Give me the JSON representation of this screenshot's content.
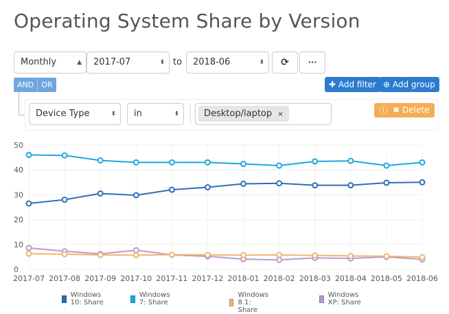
{
  "title": "Operating System Share by Version",
  "controls": {
    "interval": "Monthly",
    "from": "2017-07",
    "to_label": "to",
    "to": "2018-06",
    "refresh_icon": "refresh-icon",
    "more_icon": "ellipsis-icon",
    "more_label": "···"
  },
  "filters": {
    "and_label": "AND",
    "or_label": "OR",
    "add_filter": "Add filter",
    "add_group": "Add group",
    "field": "Device Type",
    "operator": "in",
    "value_tag": "Desktop/laptop",
    "remove_tag": "×",
    "delete_label": "Delete"
  },
  "chart_data": {
    "type": "line",
    "title": "",
    "xlabel": "",
    "ylabel": "",
    "ylim": [
      0,
      50
    ],
    "yticks": [
      "0",
      "10",
      "20",
      "30",
      "40",
      "50"
    ],
    "grid": true,
    "legend": "bottom",
    "categories": [
      "2017-07",
      "2017-08",
      "2017-09",
      "2017-10",
      "2017-11",
      "2017-12",
      "2018-01",
      "2018-02",
      "2018-03",
      "2018-04",
      "2018-05",
      "2018-06"
    ],
    "series": [
      {
        "name": "Windows 10: Share",
        "color": "#2c6fb5",
        "values": [
          26.5,
          28,
          30.5,
          29.8,
          32,
          33,
          34.4,
          34.6,
          33.8,
          33.8,
          34.8,
          35
        ]
      },
      {
        "name": "Windows 7: Share",
        "color": "#1ca8dd",
        "values": [
          46,
          45.8,
          43.8,
          43,
          43,
          43,
          42.4,
          41.7,
          43.4,
          43.6,
          41.7,
          43
        ]
      },
      {
        "name": "Windows 8.1: Share",
        "color": "#f0b46e",
        "values": [
          6.3,
          6.1,
          5.8,
          5.7,
          5.9,
          5.8,
          5.7,
          5.8,
          5.6,
          5.4,
          5.3,
          4.9
        ]
      },
      {
        "name": "Windows XP: Share",
        "color": "#b99ad0",
        "values": [
          8.6,
          7.3,
          6.2,
          7.7,
          5.8,
          5.2,
          4.1,
          3.8,
          4.6,
          4.4,
          5,
          4
        ]
      }
    ]
  }
}
